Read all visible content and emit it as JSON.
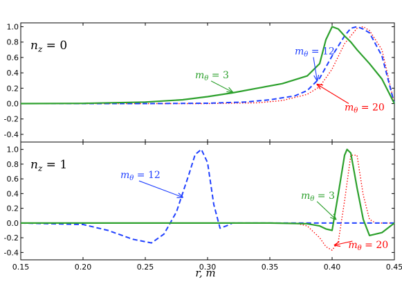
{
  "chart_data": [
    {
      "type": "line",
      "panel": "top",
      "label": "n_z = 0",
      "label_main": "n",
      "label_sub": "z",
      "label_rest": " = 0",
      "xlim": [
        0.15,
        0.45
      ],
      "ylim": [
        -0.5,
        1.05
      ],
      "yticks": [
        "1.0",
        "0.8",
        "0.6",
        "0.4",
        "0.2",
        "0.0",
        "-0.2",
        "-0.4"
      ],
      "ytick_values": [
        1.0,
        0.8,
        0.6,
        0.4,
        0.2,
        0.0,
        -0.2,
        -0.4
      ],
      "series": [
        {
          "name": "m_θ = 3",
          "color": "#2ca02c",
          "dash": "solid",
          "x": [
            0.15,
            0.2,
            0.25,
            0.28,
            0.3,
            0.32,
            0.34,
            0.36,
            0.38,
            0.39,
            0.395,
            0.4,
            0.405,
            0.41,
            0.415,
            0.42,
            0.43,
            0.44,
            0.45
          ],
          "y": [
            0.0,
            0.003,
            0.02,
            0.05,
            0.09,
            0.14,
            0.2,
            0.26,
            0.36,
            0.52,
            0.83,
            1.0,
            0.97,
            0.88,
            0.8,
            0.7,
            0.52,
            0.32,
            0.0
          ]
        },
        {
          "name": "m_θ = 12",
          "color": "#1f3fff",
          "dash": "dashed",
          "x": [
            0.15,
            0.25,
            0.3,
            0.33,
            0.35,
            0.37,
            0.38,
            0.39,
            0.4,
            0.41,
            0.415,
            0.42,
            0.425,
            0.43,
            0.44,
            0.45
          ],
          "y": [
            0.0,
            0.0,
            0.005,
            0.02,
            0.05,
            0.1,
            0.17,
            0.33,
            0.62,
            0.88,
            0.98,
            1.0,
            0.97,
            0.92,
            0.62,
            0.0
          ]
        },
        {
          "name": "m_θ = 20",
          "color": "#ff0000",
          "dash": "dotted",
          "x": [
            0.15,
            0.3,
            0.34,
            0.36,
            0.38,
            0.39,
            0.4,
            0.41,
            0.42,
            0.425,
            0.43,
            0.44,
            0.45
          ],
          "y": [
            0.0,
            0.0,
            0.01,
            0.04,
            0.12,
            0.22,
            0.45,
            0.78,
            0.98,
            1.0,
            0.95,
            0.7,
            0.0
          ]
        }
      ],
      "annotations": [
        {
          "text_main": "m",
          "text_sub": "θ",
          "text_rest": " = 3",
          "color": "#2ca02c",
          "label_x": 0.29,
          "label_y": 0.33,
          "arrow_x": 0.32,
          "arrow_y": 0.15
        },
        {
          "text_main": "m",
          "text_sub": "θ",
          "text_rest": " = 12",
          "color": "#1f3fff",
          "label_x": 0.37,
          "label_y": 0.64,
          "arrow_x": 0.388,
          "arrow_y": 0.3
        },
        {
          "text_main": "m",
          "text_sub": "θ",
          "text_rest": " = 20",
          "color": "#ff0000",
          "label_x": 0.41,
          "label_y": -0.09,
          "arrow_x": 0.388,
          "arrow_y": 0.25
        }
      ]
    },
    {
      "type": "line",
      "panel": "bottom",
      "label": "n_z = 1",
      "label_main": "n",
      "label_sub": "z",
      "label_rest": " = 1",
      "xlim": [
        0.15,
        0.45
      ],
      "ylim": [
        -0.5,
        1.1
      ],
      "xlabel": "r, m",
      "xticks": [
        "0.15",
        "0.20",
        "0.25",
        "0.30",
        "0.35",
        "0.40",
        "0.45"
      ],
      "xtick_values": [
        0.15,
        0.2,
        0.25,
        0.3,
        0.35,
        0.4,
        0.45
      ],
      "yticks": [
        "1.0",
        "0.8",
        "0.6",
        "0.4",
        "0.2",
        "0.0",
        "-0.2",
        "-0.4"
      ],
      "ytick_values": [
        1.0,
        0.8,
        0.6,
        0.4,
        0.2,
        0.0,
        -0.2,
        -0.4
      ],
      "series": [
        {
          "name": "m_θ = 3",
          "color": "#2ca02c",
          "dash": "solid",
          "x": [
            0.15,
            0.35,
            0.38,
            0.39,
            0.395,
            0.4,
            0.405,
            0.41,
            0.412,
            0.415,
            0.42,
            0.425,
            0.43,
            0.44,
            0.45
          ],
          "y": [
            0.0,
            0.0,
            -0.01,
            -0.04,
            -0.08,
            -0.1,
            0.4,
            0.92,
            1.0,
            0.95,
            0.48,
            0.05,
            -0.17,
            -0.13,
            0.0
          ]
        },
        {
          "name": "m_θ = 12",
          "color": "#1f3fff",
          "dash": "dashed",
          "x": [
            0.15,
            0.2,
            0.22,
            0.24,
            0.255,
            0.265,
            0.275,
            0.285,
            0.29,
            0.295,
            0.3,
            0.305,
            0.31,
            0.315,
            0.32,
            0.33,
            0.45
          ],
          "y": [
            0.0,
            -0.02,
            -0.1,
            -0.22,
            -0.27,
            -0.15,
            0.15,
            0.66,
            0.93,
            1.0,
            0.82,
            0.25,
            -0.07,
            -0.04,
            0.0,
            0.0,
            0.0
          ]
        },
        {
          "name": "m_θ = 20",
          "color": "#ff0000",
          "dash": "dotted",
          "x": [
            0.15,
            0.37,
            0.38,
            0.39,
            0.395,
            0.4,
            0.405,
            0.41,
            0.415,
            0.42,
            0.425,
            0.43,
            0.435,
            0.44,
            0.45
          ],
          "y": [
            0.0,
            0.0,
            -0.04,
            -0.2,
            -0.32,
            -0.37,
            -0.25,
            0.3,
            0.92,
            0.92,
            0.38,
            0.05,
            0.0,
            0.0,
            0.0
          ]
        }
      ],
      "annotations": [
        {
          "text_main": "m",
          "text_sub": "θ",
          "text_rest": " = 12",
          "color": "#1f3fff",
          "label_x": 0.23,
          "label_y": 0.61,
          "arrow_x": 0.28,
          "arrow_y": 0.35
        },
        {
          "text_main": "m",
          "text_sub": "θ",
          "text_rest": " = 3",
          "color": "#2ca02c",
          "label_x": 0.375,
          "label_y": 0.33,
          "arrow_x": 0.403,
          "arrow_y": 0.05
        },
        {
          "text_main": "m",
          "text_sub": "θ",
          "text_rest": " = 20",
          "color": "#ff0000",
          "label_x": 0.413,
          "label_y": -0.34,
          "arrow_x": 0.402,
          "arrow_y": -0.3
        }
      ]
    }
  ]
}
